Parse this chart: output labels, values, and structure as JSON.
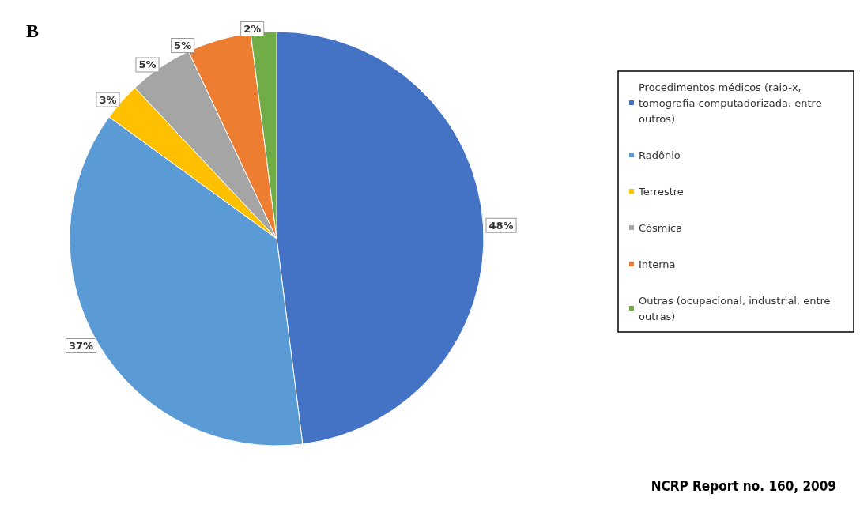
{
  "chart_data": {
    "type": "pie",
    "title": "B",
    "categories": [
      "Procedimentos médicos (raio-x, tomografia computadorizada, entre outros)",
      "Radônio",
      "Terrestre",
      "Cósmica",
      "Interna",
      "Outras (ocupacional, industrial, entre outras)"
    ],
    "values": [
      48,
      37,
      3,
      5,
      5,
      2
    ],
    "colors": [
      "#4472c4",
      "#5b9bd5",
      "#ffc000",
      "#a5a5a5",
      "#ed7d31",
      "#70ad47"
    ],
    "value_labels": [
      "48%",
      "37%",
      "3%",
      "5%",
      "5%",
      "2%"
    ],
    "legend": "right",
    "annotations": [
      "NCRP Report no. 160, 2009"
    ]
  }
}
